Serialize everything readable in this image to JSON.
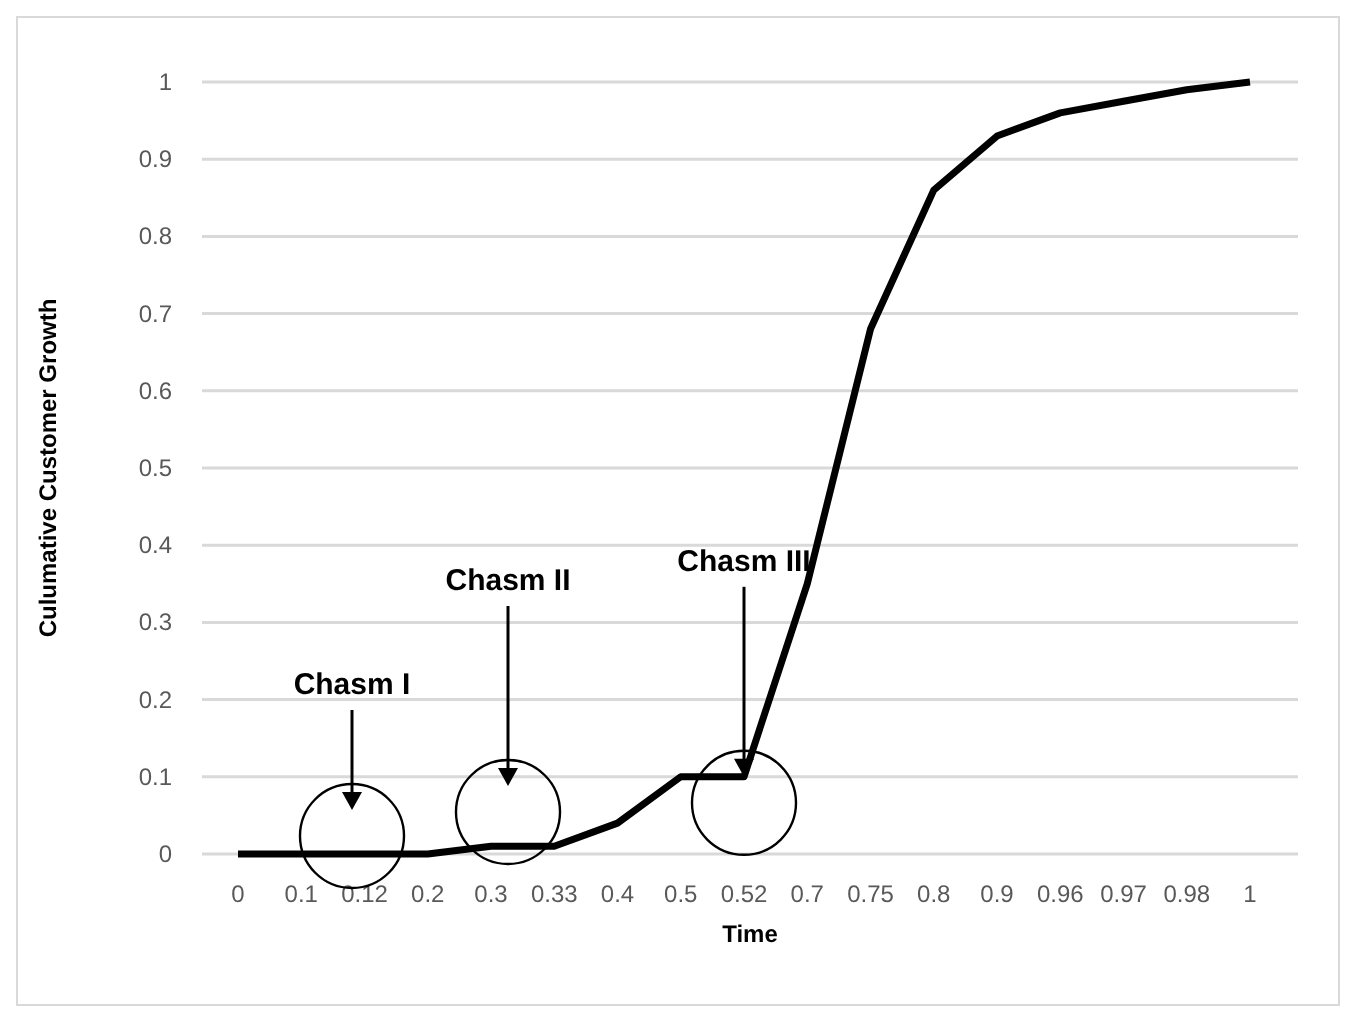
{
  "chart_data": {
    "type": "line",
    "xlabel": "Time",
    "ylabel": "Culumative Customer Growth",
    "categories": [
      "0",
      "0.1",
      "0.12",
      "0.2",
      "0.3",
      "0.33",
      "0.4",
      "0.5",
      "0.52",
      "0.7",
      "0.75",
      "0.8",
      "0.9",
      "0.96",
      "0.97",
      "0.98",
      "1"
    ],
    "series": [
      {
        "color": "#000000",
        "values": [
          0,
          0,
          0,
          0,
          0.01,
          0.01,
          0.04,
          0.1,
          0.1,
          0.35,
          0.68,
          0.86,
          0.93,
          0.96,
          0.975,
          0.99,
          1
        ]
      }
    ],
    "ylim": [
      0,
      1
    ],
    "yticks": [
      0,
      0.1,
      0.2,
      0.3,
      0.4,
      0.5,
      0.6,
      0.7,
      0.8,
      0.9,
      1
    ],
    "grid": "y",
    "marker": "none",
    "line_style": "solid",
    "annotations": [
      "Chasm I",
      "Chasm II",
      {
        "text": "Chasm III",
        "x": "0.52",
        "y": 0.1
      }
    ]
  }
}
